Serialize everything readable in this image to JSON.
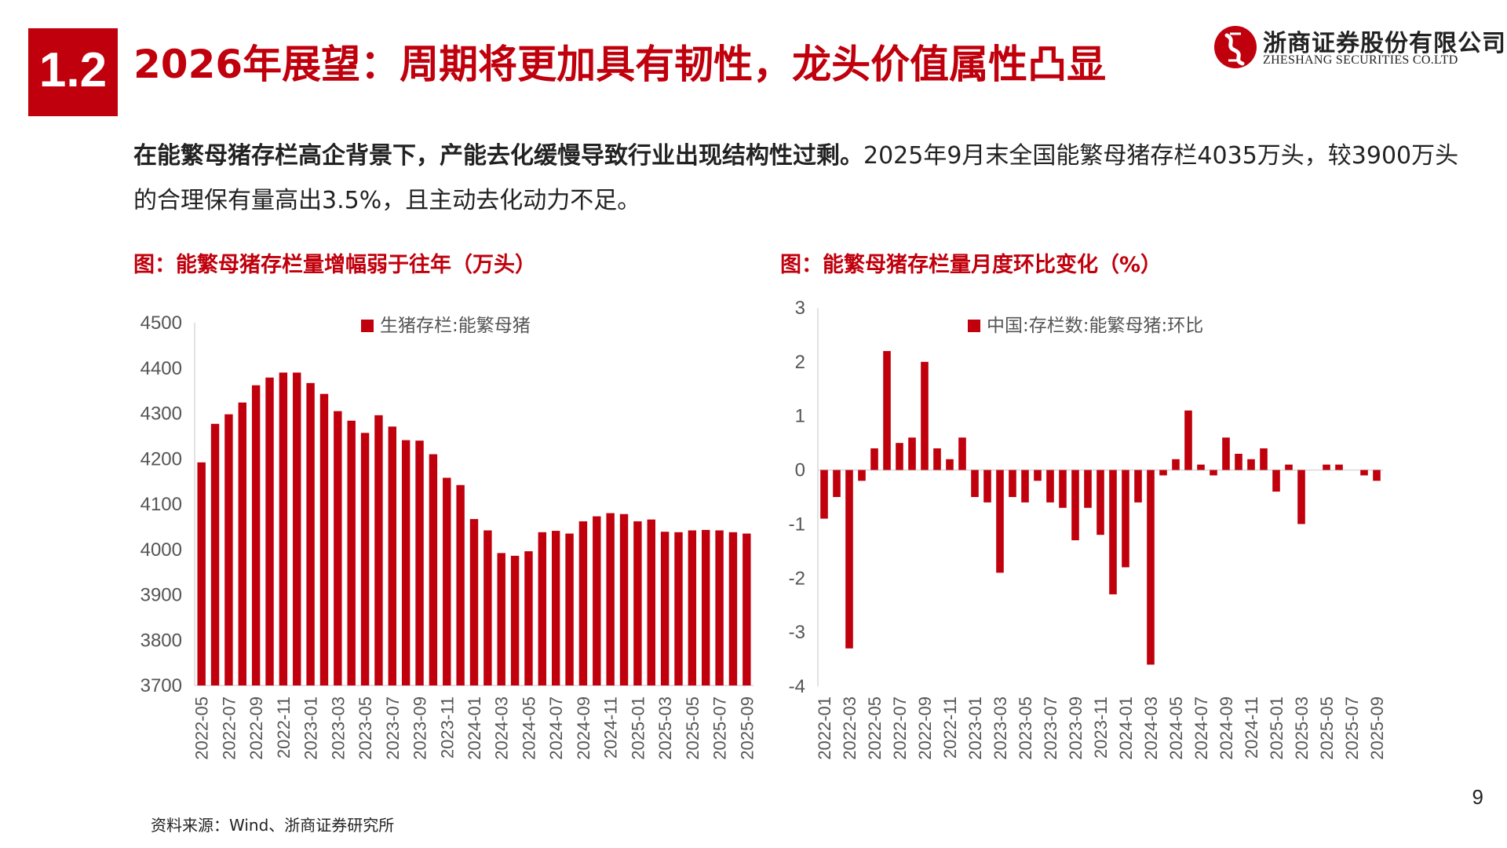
{
  "header": {
    "badge": "1.2",
    "title": "2026年展望：周期将更加具有韧性，龙头价值属性凸显",
    "logo_cn": "浙商证券股份有限公司",
    "logo_en": "ZHESHANG SECURITIES CO.LTD"
  },
  "intro": {
    "bold": "在能繁母猪存栏高企背景下，产能去化缓慢导致行业出现结构性过剩。",
    "rest": "2025年9月末全国能繁母猪存栏4035万头，较3900万头的合理保有量高出3.5%，且主动去化动力不足。"
  },
  "colors": {
    "accent": "#c0000c",
    "text": "#222222",
    "axis": "#d9d9d9"
  },
  "footer": {
    "page_number": "9",
    "source": "资料来源：Wind、浙商证券研究所"
  },
  "chart_data": [
    {
      "type": "bar",
      "title": "图：能繁母猪存栏量增幅弱于往年（万头）",
      "legend": "生猪存栏:能繁母猪",
      "ylim": [
        3700,
        4500
      ],
      "yticks": [
        3700,
        3800,
        3900,
        4000,
        4100,
        4200,
        4300,
        4400,
        4500
      ],
      "xtick_labels": [
        "2022-05",
        "2022-07",
        "2022-09",
        "2022-11",
        "2023-01",
        "2023-03",
        "2023-05",
        "2023-07",
        "2023-09",
        "2023-11",
        "2024-01",
        "2024-03",
        "2024-05",
        "2024-07",
        "2024-09",
        "2024-11",
        "2025-01",
        "2025-03",
        "2025-05",
        "2025-07",
        "2025-09"
      ],
      "categories": [
        "2022-05",
        "2022-06",
        "2022-07",
        "2022-08",
        "2022-09",
        "2022-10",
        "2022-11",
        "2022-12",
        "2023-01",
        "2023-02",
        "2023-03",
        "2023-04",
        "2023-05",
        "2023-06",
        "2023-07",
        "2023-08",
        "2023-09",
        "2023-10",
        "2023-11",
        "2023-12",
        "2024-01",
        "2024-02",
        "2024-03",
        "2024-04",
        "2024-05",
        "2024-06",
        "2024-07",
        "2024-08",
        "2024-09",
        "2024-10",
        "2024-11",
        "2024-12",
        "2025-01",
        "2025-02",
        "2025-03",
        "2025-04",
        "2025-05",
        "2025-06",
        "2025-07",
        "2025-08",
        "2025-09"
      ],
      "values": [
        4192,
        4277,
        4298,
        4324,
        4362,
        4379,
        4390,
        4390,
        4367,
        4343,
        4305,
        4284,
        4257,
        4296,
        4271,
        4241,
        4240,
        4210,
        4158,
        4142,
        4067,
        4042,
        3992,
        3986,
        3996,
        4038,
        4041,
        4035,
        4062,
        4073,
        4080,
        4078,
        4062,
        4066,
        4039,
        4038,
        4042,
        4043,
        4042,
        4038,
        4035
      ]
    },
    {
      "type": "bar",
      "title": "图：能繁母猪存栏量月度环比变化（%）",
      "legend": "中国:存栏数:能繁母猪:环比",
      "ylim": [
        -4,
        3
      ],
      "yticks": [
        -4,
        -3,
        -2,
        -1,
        0,
        1,
        2,
        3
      ],
      "xtick_labels": [
        "2022-01",
        "2022-03",
        "2022-05",
        "2022-07",
        "2022-09",
        "2022-11",
        "2023-01",
        "2023-03",
        "2023-05",
        "2023-07",
        "2023-09",
        "2023-11",
        "2024-01",
        "2024-03",
        "2024-05",
        "2024-07",
        "2024-09",
        "2024-11",
        "2025-01",
        "2025-03",
        "2025-05",
        "2025-07",
        "2025-09"
      ],
      "categories": [
        "2022-01",
        "2022-02",
        "2022-03",
        "2022-04",
        "2022-05",
        "2022-06",
        "2022-07",
        "2022-08",
        "2022-09",
        "2022-10",
        "2022-11",
        "2022-12",
        "2023-01",
        "2023-02",
        "2023-03",
        "2023-04",
        "2023-05",
        "2023-06",
        "2023-07",
        "2023-08",
        "2023-09",
        "2023-10",
        "2023-11",
        "2023-12",
        "2024-01",
        "2024-02",
        "2024-03",
        "2024-04",
        "2024-05",
        "2024-06",
        "2024-07",
        "2024-08",
        "2024-09",
        "2024-10",
        "2024-11",
        "2024-12",
        "2025-01",
        "2025-02",
        "2025-03",
        "2025-04",
        "2025-05",
        "2025-06",
        "2025-07",
        "2025-08",
        "2025-09"
      ],
      "values": [
        -0.9,
        -0.5,
        -3.3,
        -0.2,
        0.4,
        2.2,
        0.5,
        0.6,
        2.0,
        0.4,
        0.2,
        0.6,
        -0.5,
        -0.6,
        -1.9,
        -0.5,
        -0.6,
        -0.2,
        -0.6,
        -0.7,
        -1.3,
        -0.7,
        -1.2,
        -2.3,
        -1.8,
        -0.6,
        -3.6,
        -0.1,
        0.2,
        1.1,
        0.1,
        -0.1,
        0.6,
        0.3,
        0.2,
        0.4,
        -0.4,
        0.1,
        -1.0,
        0.0,
        0.1,
        0.1,
        0.0,
        -0.1,
        -0.2
      ]
    }
  ]
}
